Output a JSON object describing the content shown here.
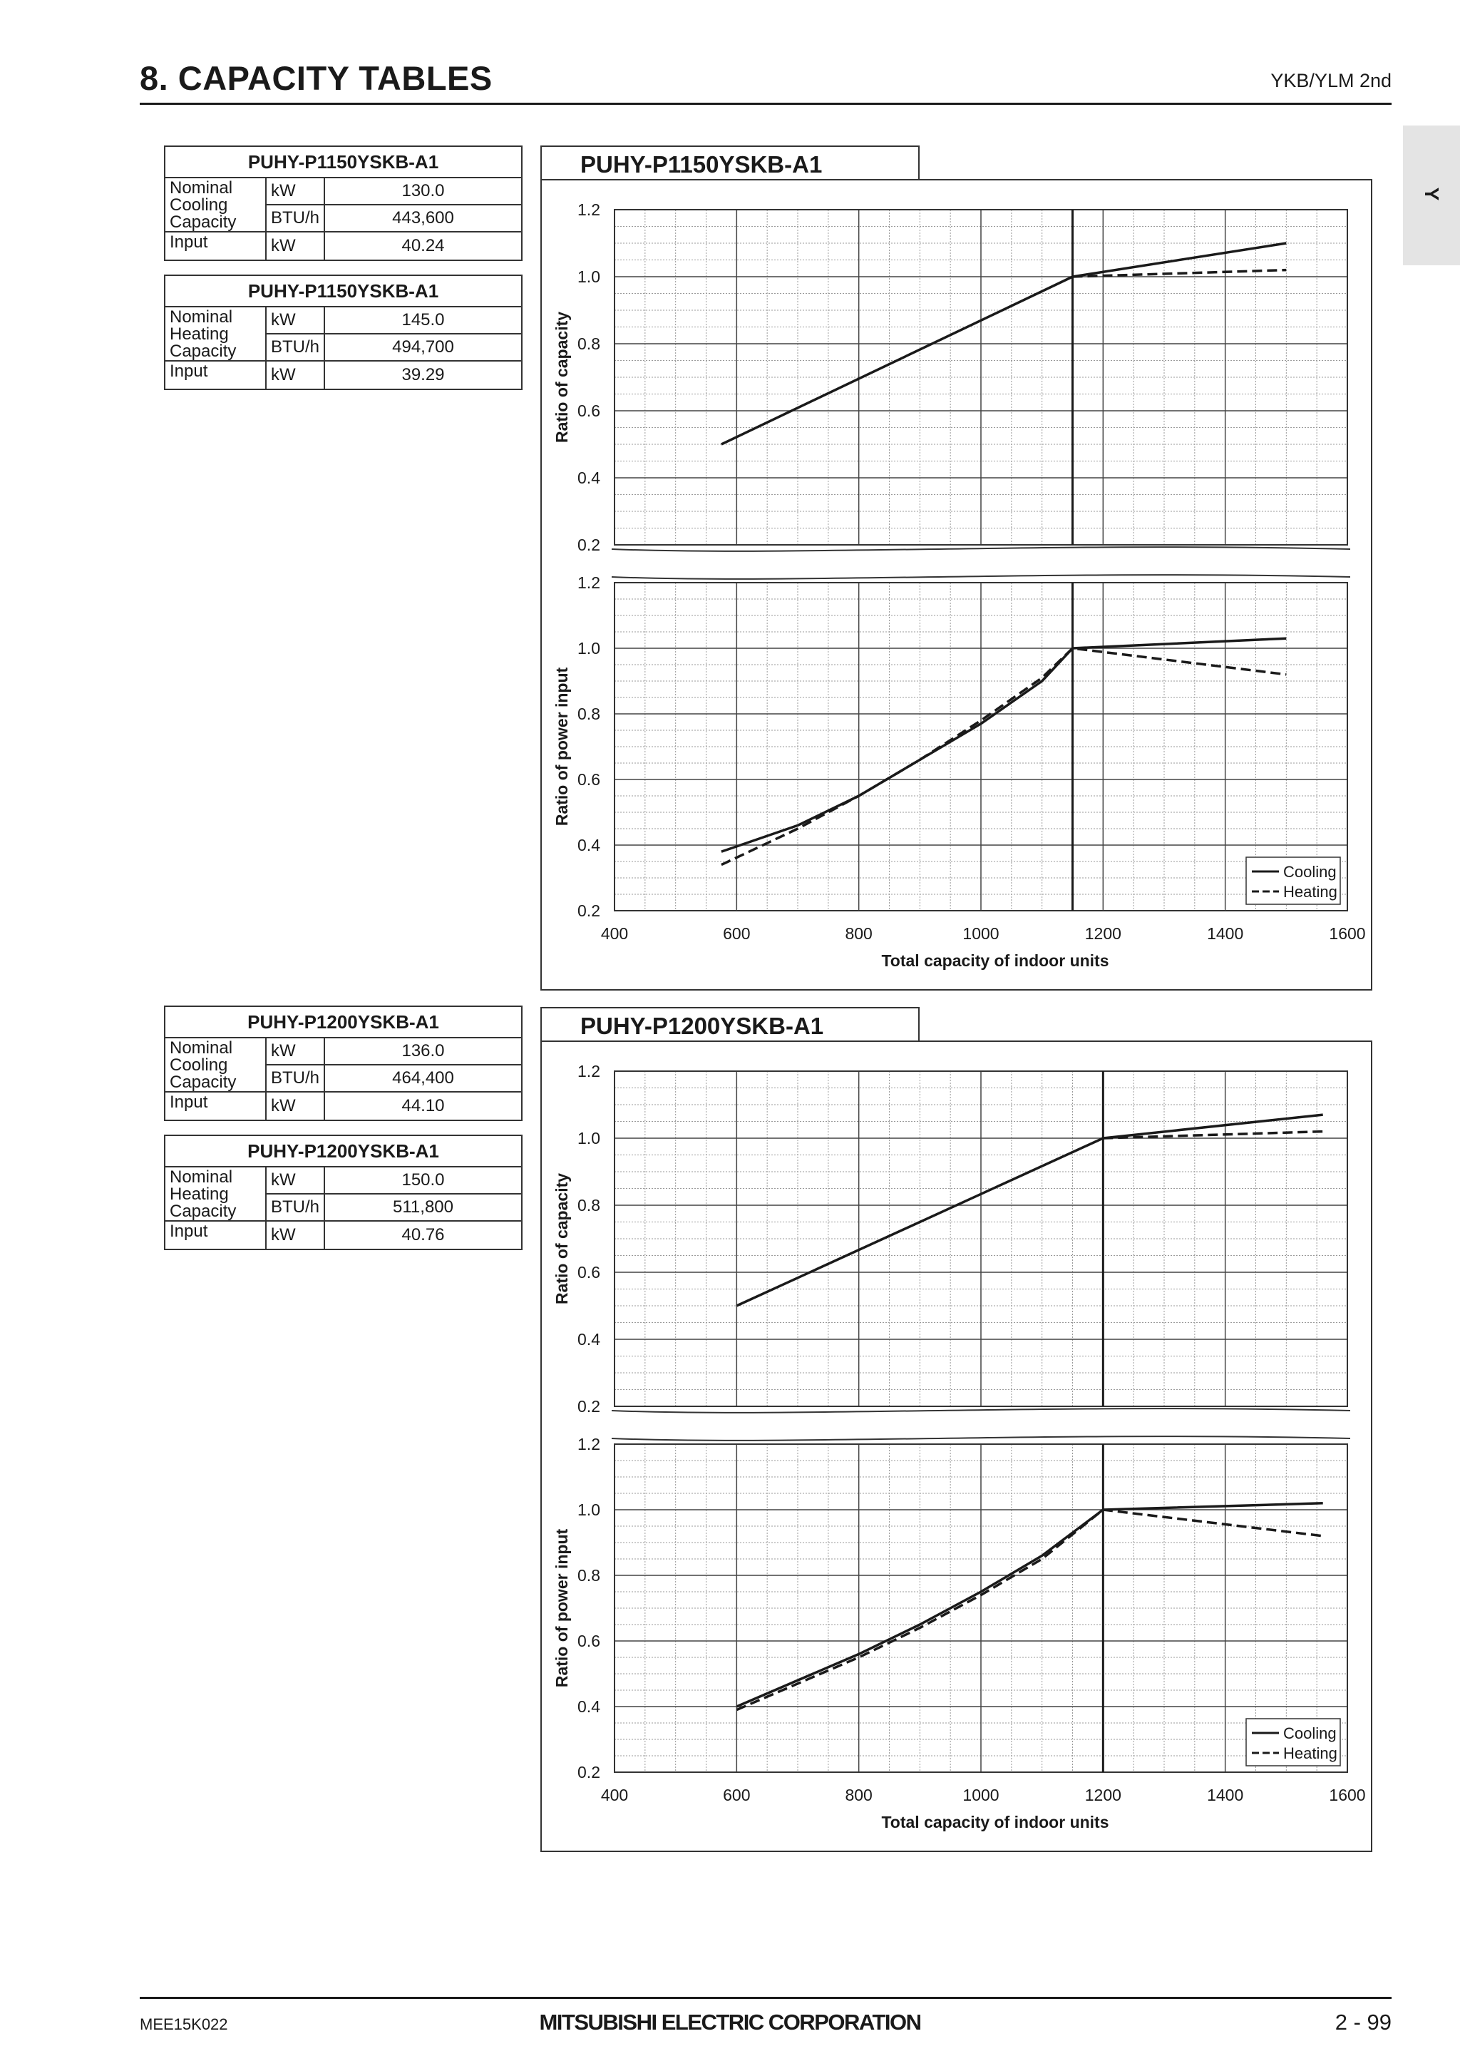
{
  "header": {
    "title": "8. CAPACITY TABLES",
    "subtitle": "YKB/YLM 2nd",
    "side_tab": "Y"
  },
  "tables": [
    {
      "model": "PUHY-P1150YSKB-A1",
      "label": "Nominal Cooling Capacity",
      "kw": "130.0",
      "btu": "443,600",
      "input": "40.24"
    },
    {
      "model": "PUHY-P1150YSKB-A1",
      "label": "Nominal Heating Capacity",
      "kw": "145.0",
      "btu": "494,700",
      "input": "39.29"
    },
    {
      "model": "PUHY-P1200YSKB-A1",
      "label": "Nominal Cooling Capacity",
      "kw": "136.0",
      "btu": "464,400",
      "input": "44.10"
    },
    {
      "model": "PUHY-P1200YSKB-A1",
      "label": "Nominal Heating Capacity",
      "kw": "150.0",
      "btu": "511,800",
      "input": "40.76"
    }
  ],
  "units": {
    "kw": "kW",
    "btu": "BTU/h",
    "input_label": "Input"
  },
  "footer": {
    "left": "MEE15K022",
    "center": "MITSUBISHI ELECTRIC CORPORATION",
    "right": "2 - 99"
  },
  "chart_data": [
    {
      "type": "line",
      "title": "PUHY-P1150YSKB-A1",
      "xlabel": "Total capacity of indoor units",
      "xlim": [
        400,
        1600
      ],
      "xticks": [
        400,
        600,
        800,
        1000,
        1200,
        1400,
        1600
      ],
      "nominal_x": 1150,
      "legend": [
        "Cooling",
        "Heating"
      ],
      "legend_position": "bottom-right",
      "panels": [
        {
          "ylabel": "Ratio of capacity",
          "ylim": [
            0.2,
            1.2
          ],
          "yticks": [
            "1.2",
            "1.0",
            "0.8",
            "0.6",
            "0.4",
            "0.2"
          ],
          "series": [
            {
              "name": "Cooling",
              "dash": false,
              "x": [
                575,
                1150,
                1500
              ],
              "y": [
                0.5,
                1.0,
                1.1
              ]
            },
            {
              "name": "Heating",
              "dash": true,
              "x": [
                1150,
                1500
              ],
              "y": [
                1.0,
                1.02
              ]
            }
          ]
        },
        {
          "ylabel": "Ratio of power input",
          "ylim": [
            0.2,
            1.2
          ],
          "yticks": [
            "1.2",
            "1.0",
            "0.8",
            "0.6",
            "0.4",
            "0.2"
          ],
          "series": [
            {
              "name": "Cooling",
              "dash": false,
              "x": [
                575,
                700,
                800,
                900,
                1000,
                1100,
                1150,
                1500
              ],
              "y": [
                0.38,
                0.46,
                0.55,
                0.66,
                0.77,
                0.9,
                1.0,
                1.03
              ]
            },
            {
              "name": "Heating",
              "dash": true,
              "x": [
                575,
                700,
                800,
                900,
                1000,
                1100,
                1150,
                1500
              ],
              "y": [
                0.34,
                0.45,
                0.55,
                0.66,
                0.78,
                0.91,
                1.0,
                0.92
              ]
            }
          ]
        }
      ]
    },
    {
      "type": "line",
      "title": "PUHY-P1200YSKB-A1",
      "xlabel": "Total capacity of indoor units",
      "xlim": [
        400,
        1600
      ],
      "xticks": [
        400,
        600,
        800,
        1000,
        1200,
        1400,
        1600
      ],
      "nominal_x": 1200,
      "legend": [
        "Cooling",
        "Heating"
      ],
      "legend_position": "bottom-right",
      "panels": [
        {
          "ylabel": "Ratio of capacity",
          "ylim": [
            0.2,
            1.2
          ],
          "yticks": [
            "1.2",
            "1.0",
            "0.8",
            "0.6",
            "0.4",
            "0.2"
          ],
          "series": [
            {
              "name": "Cooling",
              "dash": false,
              "x": [
                600,
                1200,
                1560
              ],
              "y": [
                0.5,
                1.0,
                1.07
              ]
            },
            {
              "name": "Heating",
              "dash": true,
              "x": [
                1200,
                1560
              ],
              "y": [
                1.0,
                1.02
              ]
            }
          ]
        },
        {
          "ylabel": "Ratio of power input",
          "ylim": [
            0.2,
            1.2
          ],
          "yticks": [
            "1.2",
            "1.0",
            "0.8",
            "0.6",
            "0.4",
            "0.2"
          ],
          "series": [
            {
              "name": "Cooling",
              "dash": false,
              "x": [
                600,
                800,
                900,
                1000,
                1100,
                1200,
                1560
              ],
              "y": [
                0.4,
                0.56,
                0.65,
                0.75,
                0.86,
                1.0,
                1.02
              ]
            },
            {
              "name": "Heating",
              "dash": true,
              "x": [
                600,
                800,
                900,
                1000,
                1100,
                1200,
                1560
              ],
              "y": [
                0.39,
                0.55,
                0.64,
                0.74,
                0.85,
                1.0,
                0.92
              ]
            }
          ]
        }
      ]
    }
  ]
}
